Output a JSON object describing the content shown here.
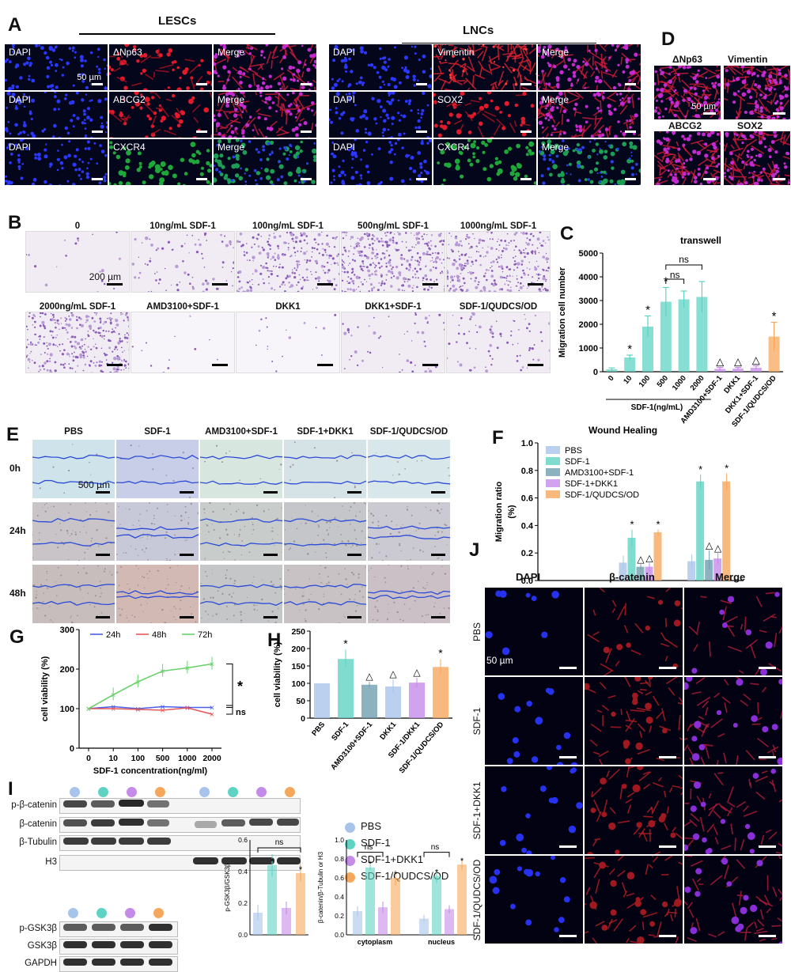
{
  "panelA": {
    "letter": "A",
    "groupL": "LESCs",
    "groupR": "LNCs",
    "scale": "50 µm",
    "rowsL": [
      [
        "DAPI",
        "ΔNp63",
        "Merge"
      ],
      [
        "DAPI",
        "ABCG2",
        "Merge"
      ],
      [
        "DAPI",
        "CXCR4",
        "Merge"
      ]
    ],
    "rowsR": [
      [
        "DAPI",
        "Vimentin",
        "Merge"
      ],
      [
        "DAPI",
        "SOX2",
        "Merge"
      ],
      [
        "DAPI",
        "CXCR4",
        "Merge"
      ]
    ]
  },
  "panelD": {
    "letter": "D",
    "labels": [
      "ΔNp63",
      "Vimentin",
      "ABCG2",
      "SOX2"
    ],
    "scale": "50 µm"
  },
  "panelB": {
    "letter": "B",
    "scale": "200 µm",
    "labels": [
      "0",
      "10ng/mL SDF-1",
      "100ng/mL SDF-1",
      "500ng/mL SDF-1",
      "1000ng/mL SDF-1",
      "2000ng/mL SDF-1",
      "AMD3100+SDF-1",
      "DKK1",
      "DKK1+SDF-1",
      "SDF-1/QUDCS/OD"
    ]
  },
  "panelC": {
    "letter": "C",
    "title": "transwell",
    "ylabel": "Migration cell number",
    "xgroup": "SDF-1(ng/mL)",
    "ns": "ns",
    "yticks": [
      "0",
      "1000",
      "2000",
      "3000",
      "4000",
      "5000"
    ],
    "categories": [
      "0",
      "10",
      "100",
      "500",
      "1000",
      "2000",
      "AMD3100+SDF-1",
      "DKK1",
      "DKK1+SDF-1",
      "SDF-1/QUDCS/OD"
    ],
    "marks": [
      "",
      "*",
      "*",
      "*",
      "",
      "",
      "△",
      "△",
      "△",
      "*"
    ]
  },
  "panelE": {
    "letter": "E",
    "cols": [
      "PBS",
      "SDF-1",
      "AMD3100+SDF-1",
      "SDF-1+DKK1",
      "SDF-1/QUDCS/OD"
    ],
    "rows": [
      "0h",
      "24h",
      "48h"
    ],
    "scale": "500 µm"
  },
  "panelF": {
    "letter": "F",
    "title": "Wound Healing",
    "ylabel1": "Migration ratio",
    "ylabel2": "(%)",
    "yticks": [
      "0.0",
      "0.2",
      "0.4",
      "0.6",
      "0.8",
      "1.0"
    ],
    "x": [
      "0h",
      "24h",
      "48h"
    ],
    "legend": [
      "PBS",
      "SDF-1",
      "AMD3100+SDF-1",
      "SDF-1+DKK1",
      "SDF-1/QUDCS/OD"
    ]
  },
  "panelG": {
    "letter": "G",
    "ylabel": "cell viability  (%)",
    "xlabel": "SDF-1 concentration(ng/ml)",
    "yticks": [
      "0",
      "100",
      "200",
      "300"
    ],
    "x": [
      "0",
      "10",
      "100",
      "500",
      "1000",
      "2000"
    ],
    "legend": [
      "24h",
      "48h",
      "72h"
    ],
    "star": "*",
    "ns": "ns"
  },
  "panelH": {
    "letter": "H",
    "ylabel": "cell viability  (%)",
    "yticks": [
      "0",
      "50",
      "100",
      "150",
      "200",
      "250"
    ],
    "categories": [
      "PBS",
      "SDF-1",
      "AMD3100+SDF-1",
      "DKK1",
      "SDF-1/DKK1",
      "SDF-1/QUDCS/OD"
    ],
    "marks": [
      "",
      "*",
      "△",
      "△",
      "△",
      "*"
    ]
  },
  "panelI": {
    "letter": "I",
    "blots1": [
      "p-β-catenin",
      "β-catenin",
      "β-Tubulin",
      "H3"
    ],
    "blots2": [
      "p-GSK3β",
      "GSK3β",
      "GAPDH"
    ],
    "legend": [
      "PBS",
      "SDF-1",
      "SDF-1+DKK1",
      "SDF-1/QUDCS/OD"
    ],
    "bar1_ylabel": "p-GSK3β/GSK3β",
    "bar1_yticks": [
      "0.0",
      "0.2",
      "0.4",
      "0.6"
    ],
    "bar2_ylabel": "β-catenin/β-Tubulin or H3",
    "bar2_yticks": [
      "0.0",
      "0.2",
      "0.4",
      "0.6",
      "0.8",
      "1.0"
    ],
    "groups": [
      "cytoplasm",
      "nucleus"
    ],
    "ns": "ns",
    "star": "*"
  },
  "panelJ": {
    "letter": "J",
    "cols": [
      "DAPI",
      "β-catenin",
      "Merge"
    ],
    "rows": [
      "PBS",
      "SDF-1",
      "SDF-1+DKK1",
      "SDF-1/QUDCS/OD"
    ],
    "scale": "50 µm"
  },
  "colors": {
    "PBS": "#a9c4ea",
    "SDF1": "#5fd3c3",
    "AMD": "#6f9fb0",
    "DKK": "#c58be8",
    "QUD": "#f5a85c",
    "line24": "#4b5ee8",
    "line48": "#e45858",
    "line72": "#6bd16b"
  },
  "chart_data": [
    {
      "type": "bar",
      "title": "transwell",
      "ylabel": "Migration cell number",
      "xlabel": "SDF-1(ng/mL)",
      "ylim": [
        0,
        5000
      ],
      "categories": [
        "0",
        "10",
        "100",
        "500",
        "1000",
        "2000",
        "AMD3100+SDF-1",
        "DKK1",
        "DKK1+SDF-1",
        "SDF-1/QUDCS/OD"
      ],
      "values": [
        100,
        600,
        1900,
        2950,
        3050,
        3150,
        120,
        130,
        170,
        1480
      ]
    },
    {
      "type": "bar",
      "title": "Wound Healing",
      "ylabel": "Migration ratio (%)",
      "ylim": [
        0,
        1.0
      ],
      "categories": [
        "0h",
        "24h",
        "48h"
      ],
      "series": [
        {
          "name": "PBS",
          "values": [
            0,
            0.13,
            0.14
          ]
        },
        {
          "name": "SDF-1",
          "values": [
            0,
            0.31,
            0.72
          ]
        },
        {
          "name": "AMD3100+SDF-1",
          "values": [
            0,
            0.1,
            0.15
          ]
        },
        {
          "name": "SDF-1+DKK1",
          "values": [
            0,
            0.1,
            0.16
          ]
        },
        {
          "name": "SDF-1/QUDCS/OD",
          "values": [
            0,
            0.35,
            0.72
          ]
        }
      ]
    },
    {
      "type": "line",
      "ylabel": "cell viability  (%)",
      "xlabel": "SDF-1 concentration(ng/ml)",
      "ylim": [
        0,
        300
      ],
      "x": [
        "0",
        "10",
        "100",
        "500",
        "1000",
        "2000"
      ],
      "series": [
        {
          "name": "24h",
          "values": [
            100,
            105,
            100,
            105,
            103,
            103
          ]
        },
        {
          "name": "48h",
          "values": [
            100,
            100,
            98,
            96,
            102,
            86
          ]
        },
        {
          "name": "72h",
          "values": [
            100,
            135,
            168,
            195,
            203,
            213
          ]
        }
      ]
    },
    {
      "type": "bar",
      "ylabel": "cell viability  (%)",
      "ylim": [
        0,
        250
      ],
      "categories": [
        "PBS",
        "SDF-1",
        "AMD3100+SDF-1",
        "DKK1",
        "SDF-1/DKK1",
        "SDF-1/QUDCS/OD"
      ],
      "values": [
        100,
        170,
        96,
        91,
        102,
        147
      ]
    },
    {
      "type": "bar",
      "ylabel": "p-GSK3β/GSK3β",
      "ylim": [
        0,
        0.6
      ],
      "categories": [
        "PBS",
        "SDF-1",
        "SDF-1+DKK1",
        "SDF-1/QUDCS/OD"
      ],
      "values": [
        0.14,
        0.44,
        0.17,
        0.39
      ]
    },
    {
      "type": "bar",
      "ylabel": "β-catenin/β-Tubulin or H3",
      "ylim": [
        0,
        1.0
      ],
      "categories": [
        "cytoplasm",
        "nucleus"
      ],
      "series": [
        {
          "name": "PBS",
          "values": [
            0.25,
            0.17
          ]
        },
        {
          "name": "SDF-1",
          "values": [
            0.71,
            0.62
          ]
        },
        {
          "name": "SDF-1+DKK1",
          "values": [
            0.29,
            0.27
          ]
        },
        {
          "name": "SDF-1/QUDCS/OD",
          "values": [
            0.6,
            0.74
          ]
        }
      ]
    }
  ]
}
